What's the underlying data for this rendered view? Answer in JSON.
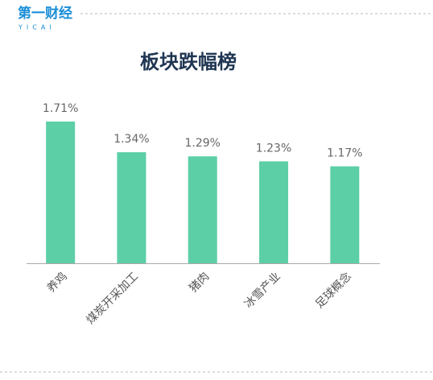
{
  "logo": {
    "name": "第一财经",
    "sub": "YICAI"
  },
  "chart_data": {
    "type": "bar",
    "title": "板块跌幅榜",
    "categories": [
      "养鸡",
      "煤炭开采加工",
      "猪肉",
      "冰雪产业",
      "足球概念"
    ],
    "values": [
      1.71,
      1.34,
      1.29,
      1.23,
      1.17
    ],
    "value_labels": [
      "1.71%",
      "1.34%",
      "1.29%",
      "1.23%",
      "1.17%"
    ],
    "color": "#5ccfa6"
  }
}
